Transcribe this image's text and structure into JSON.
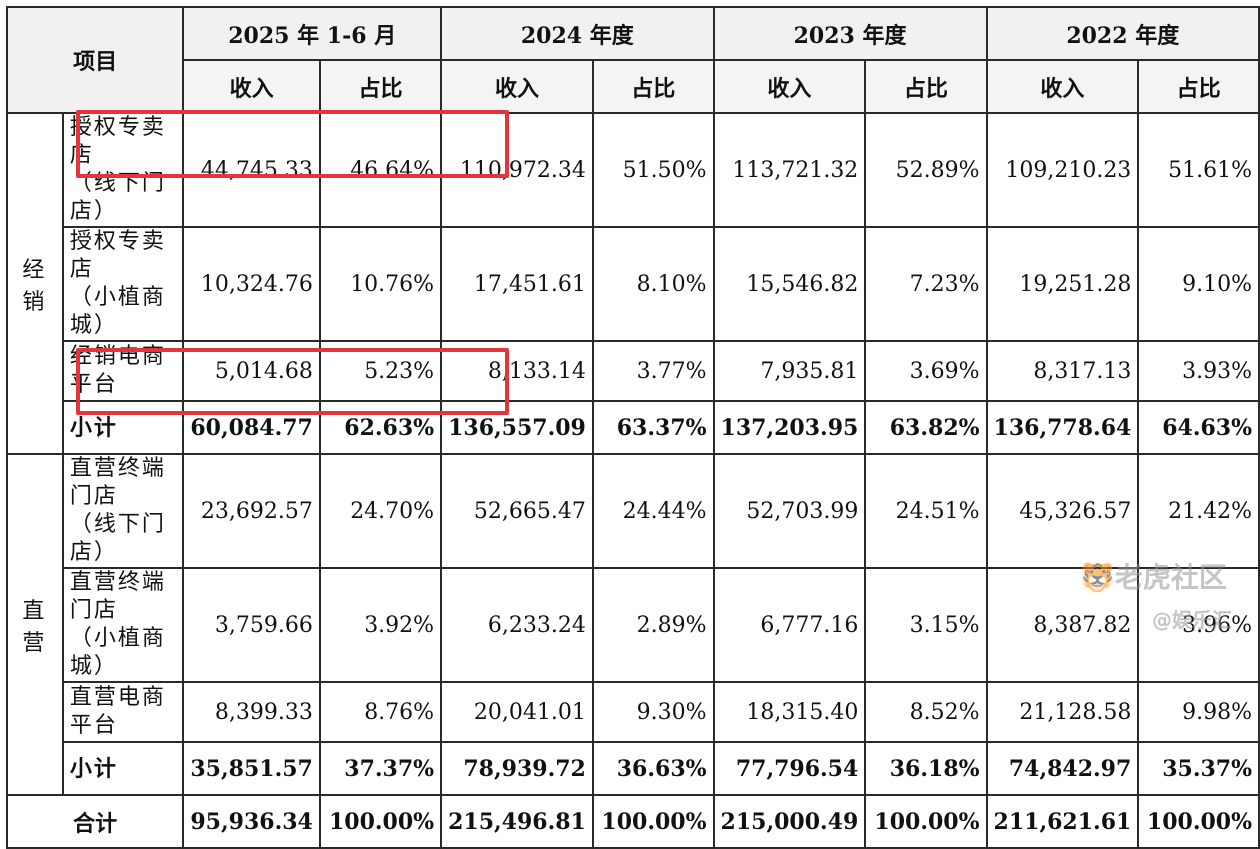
{
  "header": {
    "item_label": "项目",
    "periods": [
      "2025 年 1-6 月",
      "2024 年度",
      "2023 年度",
      "2022 年度"
    ],
    "income_label": "收入",
    "share_label": "占比"
  },
  "groups": [
    {
      "category": "经销",
      "rows": [
        {
          "label": "授权专卖店\n（线下门店）",
          "values": [
            "44,745.33",
            "46.64%",
            "110,972.34",
            "51.50%",
            "113,721.32",
            "52.89%",
            "109,210.23",
            "51.61%"
          ]
        },
        {
          "label": "授权专卖店\n（小植商城）",
          "values": [
            "10,324.76",
            "10.76%",
            "17,451.61",
            "8.10%",
            "15,546.82",
            "7.23%",
            "19,251.28",
            "9.10%"
          ]
        },
        {
          "label": "经销电商平台",
          "values": [
            "5,014.68",
            "5.23%",
            "8,133.14",
            "3.77%",
            "7,935.81",
            "3.69%",
            "8,317.13",
            "3.93%"
          ]
        }
      ],
      "subtotal": {
        "label": "小计",
        "values": [
          "60,084.77",
          "62.63%",
          "136,557.09",
          "63.37%",
          "137,203.95",
          "63.82%",
          "136,778.64",
          "64.63%"
        ]
      }
    },
    {
      "category": "直营",
      "rows": [
        {
          "label": "直营终端门店\n（线下门店）",
          "values": [
            "23,692.57",
            "24.70%",
            "52,665.47",
            "24.44%",
            "52,703.99",
            "24.51%",
            "45,326.57",
            "21.42%"
          ]
        },
        {
          "label": "直营终端门店\n（小植商城）",
          "values": [
            "3,759.66",
            "3.92%",
            "6,233.24",
            "2.89%",
            "6,777.16",
            "3.15%",
            "8,387.82",
            "3.96%"
          ]
        },
        {
          "label": "直营电商平台",
          "values": [
            "8,399.33",
            "8.76%",
            "20,041.01",
            "9.30%",
            "18,315.40",
            "8.52%",
            "21,128.58",
            "9.98%"
          ]
        }
      ],
      "subtotal": {
        "label": "小计",
        "values": [
          "35,851.57",
          "37.37%",
          "78,939.72",
          "36.63%",
          "77,796.54",
          "36.18%",
          "74,842.97",
          "35.37%"
        ]
      }
    }
  ],
  "total": {
    "label": "合计",
    "values": [
      "95,936.34",
      "100.00%",
      "215,496.81",
      "100.00%",
      "215,000.49",
      "100.00%",
      "211,621.61",
      "100.00%"
    ]
  },
  "highlight_color": "#e4353a",
  "watermark": {
    "text1": "老虎社区",
    "text2": "@娱乐汇"
  }
}
